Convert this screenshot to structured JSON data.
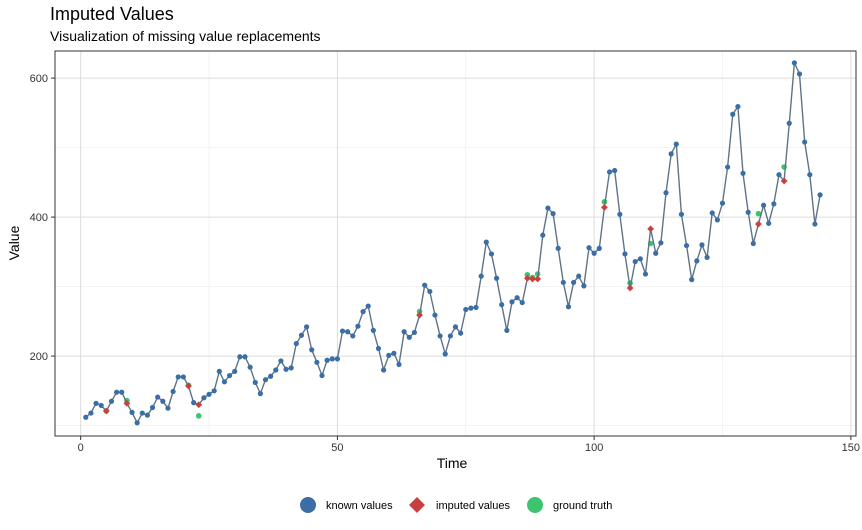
{
  "chart_data": {
    "type": "line",
    "title": "Imputed Values",
    "subtitle": "Visualization of missing value replacements",
    "xlabel": "Time",
    "ylabel": "Value",
    "xlim": [
      -5,
      151
    ],
    "ylim": [
      85,
      639
    ],
    "xticks": [
      0,
      50,
      100,
      150
    ],
    "yticks": [
      200,
      400,
      600
    ],
    "grid": true,
    "legend_position": "bottom",
    "colors": {
      "known": "#3a6ea5",
      "imputed": "#c94040",
      "truth": "#3cc46e",
      "line": "#5f7387"
    },
    "series": [
      {
        "name": "known values",
        "x": [
          1,
          2,
          3,
          4,
          6,
          7,
          8,
          10,
          11,
          12,
          13,
          14,
          15,
          16,
          17,
          18,
          19,
          20,
          22,
          24,
          25,
          26,
          27,
          28,
          29,
          30,
          31,
          32,
          33,
          34,
          35,
          36,
          37,
          38,
          39,
          40,
          41,
          42,
          43,
          44,
          45,
          46,
          47,
          48,
          49,
          50,
          51,
          52,
          53,
          54,
          55,
          56,
          57,
          58,
          59,
          60,
          61,
          62,
          63,
          64,
          65,
          67,
          68,
          69,
          70,
          71,
          72,
          73,
          74,
          75,
          76,
          77,
          78,
          79,
          80,
          81,
          82,
          83,
          84,
          85,
          86,
          90,
          91,
          92,
          93,
          94,
          95,
          96,
          97,
          98,
          99,
          100,
          101,
          103,
          104,
          105,
          106,
          108,
          109,
          110,
          112,
          113,
          114,
          115,
          116,
          117,
          118,
          119,
          120,
          121,
          122,
          123,
          124,
          125,
          126,
          127,
          128,
          129,
          130,
          131,
          133,
          134,
          135,
          136,
          138,
          139,
          140,
          141,
          142,
          143,
          144
        ],
        "values": [
          112,
          118,
          132,
          129,
          135,
          148,
          148,
          119,
          104,
          118,
          115,
          126,
          141,
          135,
          125,
          149,
          170,
          170,
          133,
          140,
          145,
          150,
          178,
          163,
          172,
          178,
          199,
          199,
          184,
          162,
          146,
          166,
          171,
          180,
          193,
          181,
          183,
          218,
          230,
          242,
          209,
          191,
          172,
          194,
          196,
          196,
          236,
          235,
          229,
          243,
          264,
          272,
          237,
          211,
          180,
          201,
          204,
          188,
          235,
          227,
          234,
          302,
          293,
          259,
          229,
          203,
          229,
          242,
          233,
          267,
          269,
          270,
          315,
          364,
          347,
          312,
          274,
          237,
          278,
          284,
          277,
          374,
          413,
          405,
          355,
          306,
          271,
          306,
          315,
          301,
          356,
          348,
          355,
          465,
          467,
          404,
          347,
          336,
          340,
          318,
          348,
          363,
          435,
          491,
          505,
          404,
          359,
          310,
          337,
          360,
          342,
          406,
          396,
          420,
          472,
          548,
          559,
          463,
          407,
          362,
          417,
          391,
          419,
          461,
          535,
          622,
          606,
          508,
          461,
          390,
          432
        ]
      },
      {
        "name": "imputed values",
        "x": [
          5,
          9,
          21,
          23,
          66,
          87,
          88,
          89,
          102,
          107,
          111,
          132,
          137
        ],
        "values": [
          121,
          132,
          157,
          130,
          259,
          312,
          311,
          311,
          414,
          298,
          383,
          390,
          452
        ]
      },
      {
        "name": "ground truth",
        "x": [
          5,
          9,
          21,
          23,
          66,
          87,
          88,
          89,
          102,
          107,
          111,
          132,
          137
        ],
        "values": [
          121,
          136,
          158,
          114,
          264,
          317,
          313,
          318,
          422,
          305,
          362,
          405,
          472
        ]
      }
    ]
  }
}
